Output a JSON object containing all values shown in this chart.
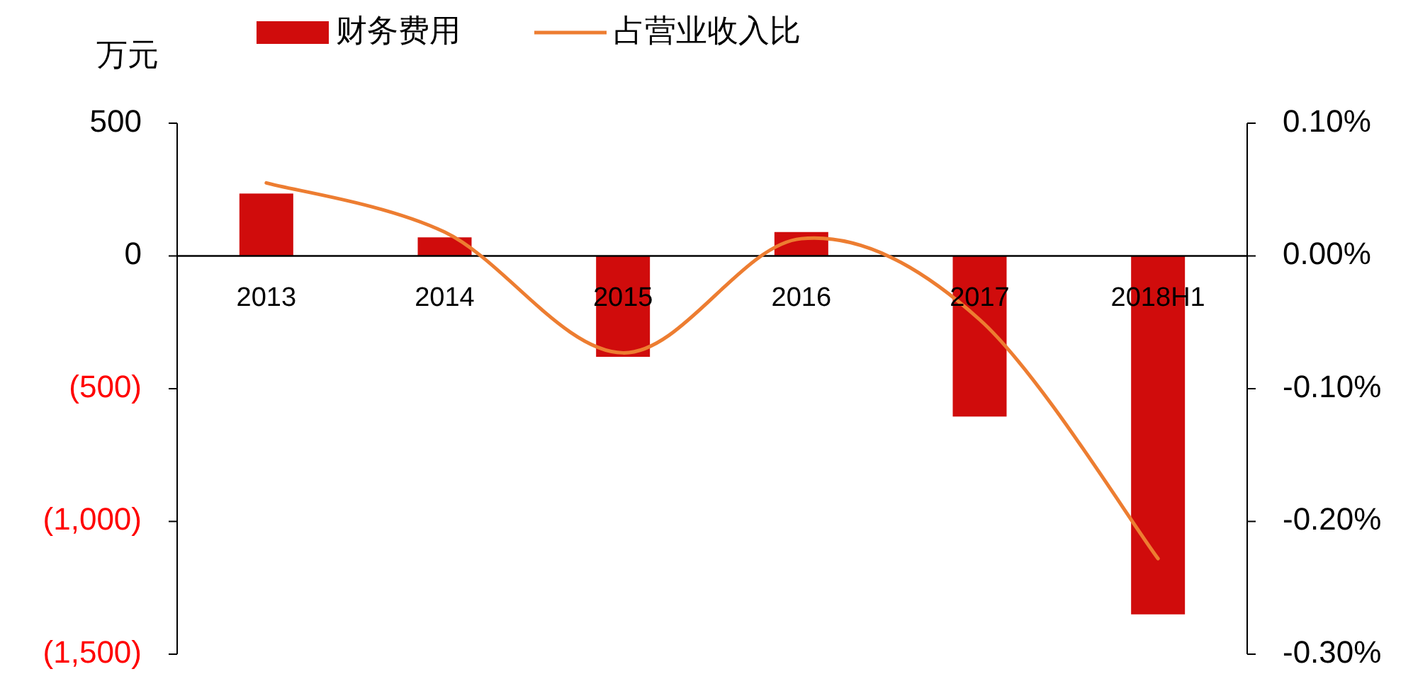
{
  "chart_data": {
    "type": "bar",
    "ylabel": "万元",
    "categories": [
      "2013",
      "2014",
      "2015",
      "2016",
      "2017",
      "2018H1"
    ],
    "series": [
      {
        "name": "财务费用",
        "color": "#d00c0c",
        "values": [
          235,
          70,
          -380,
          90,
          -605,
          -1350
        ]
      },
      {
        "name": "占营业收入比",
        "type": "line",
        "axis": "y2",
        "color": "#ed7d31",
        "values": [
          0.055,
          0.018,
          -0.073,
          0.013,
          -0.048,
          -0.228
        ]
      }
    ],
    "ylim": [
      -1500,
      500
    ],
    "yticks": [
      500,
      0,
      {
        "value": -500,
        "label": "(500)"
      },
      {
        "value": -1000,
        "label": "(1,000)"
      },
      {
        "value": -1500,
        "label": "(1,500)"
      }
    ],
    "y2lim": [
      -0.3,
      0.1
    ],
    "y2ticks": [
      {
        "value": 0.1,
        "label": "0.10%"
      },
      {
        "value": 0,
        "label": "0.00%"
      },
      {
        "value": -0.1,
        "label": "-0.10%"
      },
      {
        "value": -0.2,
        "label": "-0.20%"
      },
      {
        "value": -0.3,
        "label": "-0.30%"
      }
    ],
    "legend": "top",
    "marker": "none",
    "line_style": "solid",
    "grid": false
  }
}
